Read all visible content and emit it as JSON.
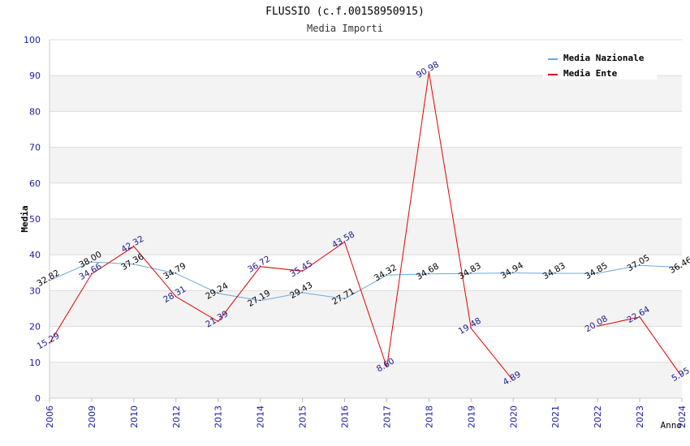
{
  "chart_data": {
    "type": "line",
    "title": "FLUSSIO (c.f.00158950915)",
    "subtitle": "Media Importi",
    "xlabel": "Anno",
    "ylabel": "Media",
    "ylim": [
      0,
      100
    ],
    "yticks": [
      "0",
      "10",
      "20",
      "30",
      "40",
      "50",
      "60",
      "70",
      "80",
      "90",
      "100"
    ],
    "categories": [
      "2006",
      "2009",
      "2010",
      "2012",
      "2013",
      "2014",
      "2015",
      "2016",
      "2017",
      "2018",
      "2019",
      "2020",
      "2021",
      "2022",
      "2023",
      "2024"
    ],
    "grid": true,
    "legend_position": "top-right",
    "series": [
      {
        "name": "Media Nazionale",
        "color": "#6fa8dc",
        "values": [
          32.82,
          38.0,
          37.36,
          34.79,
          29.24,
          27.19,
          29.43,
          27.71,
          34.32,
          34.68,
          34.83,
          34.94,
          34.83,
          34.85,
          37.05,
          36.46
        ],
        "labels": [
          "32.82",
          "38.00",
          "37.36",
          "34.79",
          "29.24",
          "27.19",
          "29.43",
          "27.71",
          "34.32",
          "34.68",
          "34.83",
          "34.94",
          "34.83",
          "34.85",
          "37.05",
          "36.46"
        ]
      },
      {
        "name": "Media Ente",
        "color": "#e00000",
        "values": [
          15.29,
          34.66,
          42.32,
          28.31,
          21.39,
          36.72,
          35.45,
          43.58,
          8.6,
          90.98,
          19.48,
          4.89,
          null,
          20.08,
          22.64,
          5.95
        ],
        "labels": [
          "15.29",
          "34.66",
          "42.32",
          "28.31",
          "21.39",
          "36.72",
          "35.45",
          "43.58",
          "8.60",
          "90.98",
          "19.48",
          "4.89",
          null,
          "20.08",
          "22.64",
          "5.95"
        ]
      }
    ]
  }
}
